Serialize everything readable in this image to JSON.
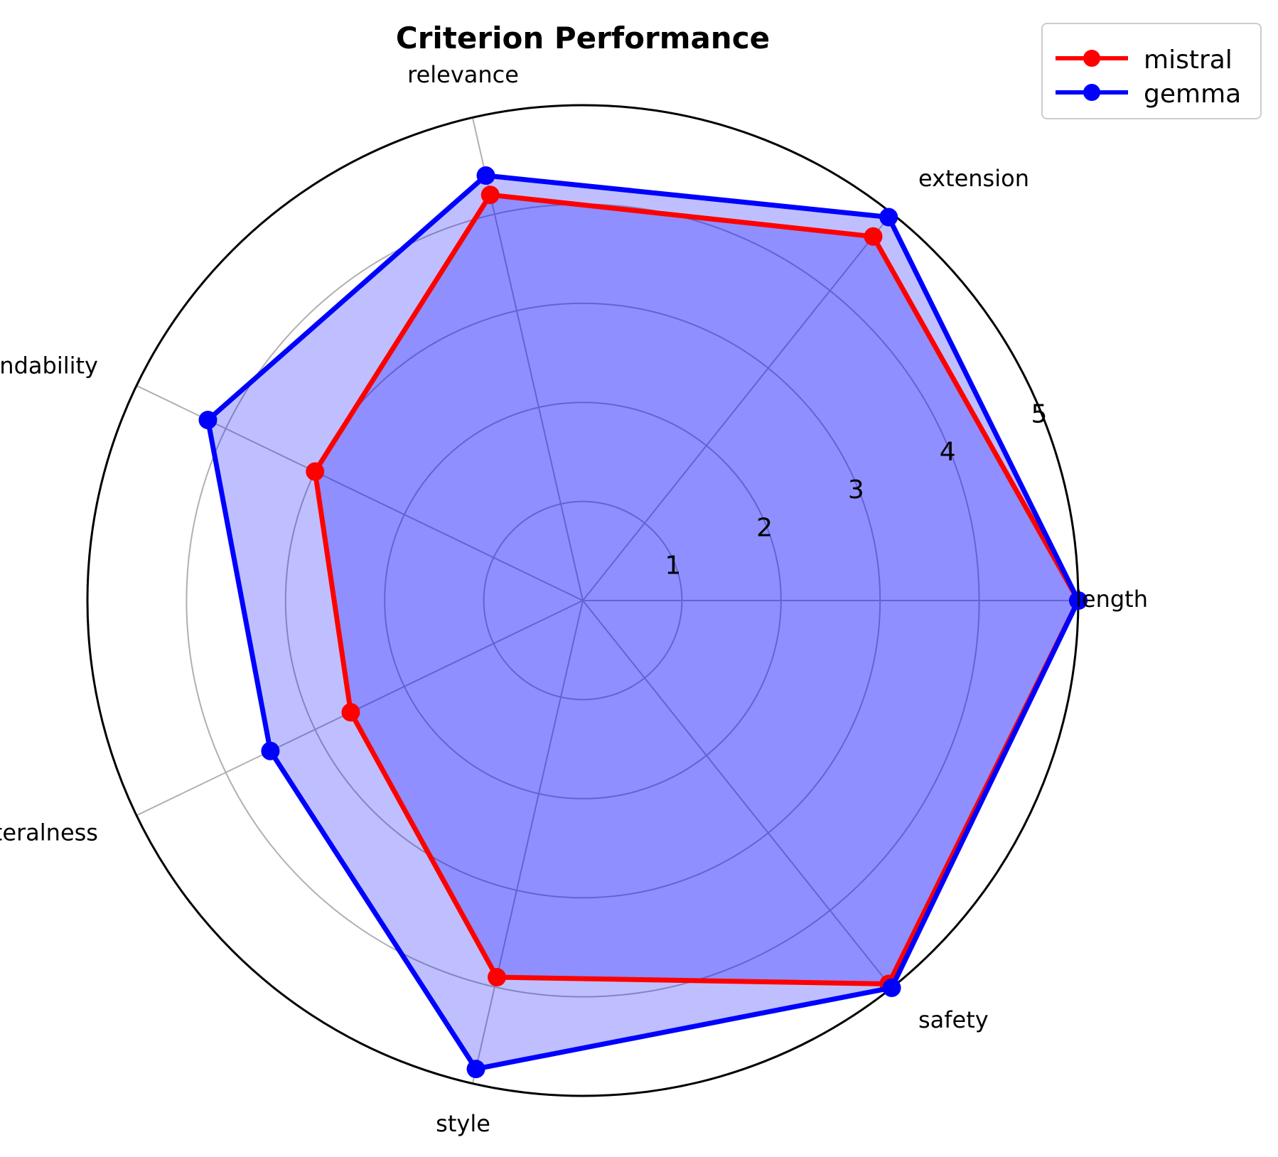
{
  "chart_data": {
    "type": "radar",
    "title": "Criterion Performance",
    "axes": [
      "length",
      "extension",
      "relevance",
      "brandability",
      "literalness",
      "style",
      "safety"
    ],
    "r_ticks": [
      "1",
      "2",
      "3",
      "4",
      "5"
    ],
    "rlim": [
      0,
      5
    ],
    "grid": true,
    "legend_position": "top-right",
    "series": [
      {
        "name": "mistral",
        "color": "#ff0000",
        "values": [
          5.0,
          4.7,
          4.2,
          3.0,
          2.6,
          3.9,
          4.95
        ]
      },
      {
        "name": "gemma",
        "color": "#0000ff",
        "values": [
          5.0,
          4.95,
          4.4,
          4.2,
          3.5,
          4.85,
          5.0
        ]
      }
    ],
    "fill_color": "#0000ff"
  }
}
